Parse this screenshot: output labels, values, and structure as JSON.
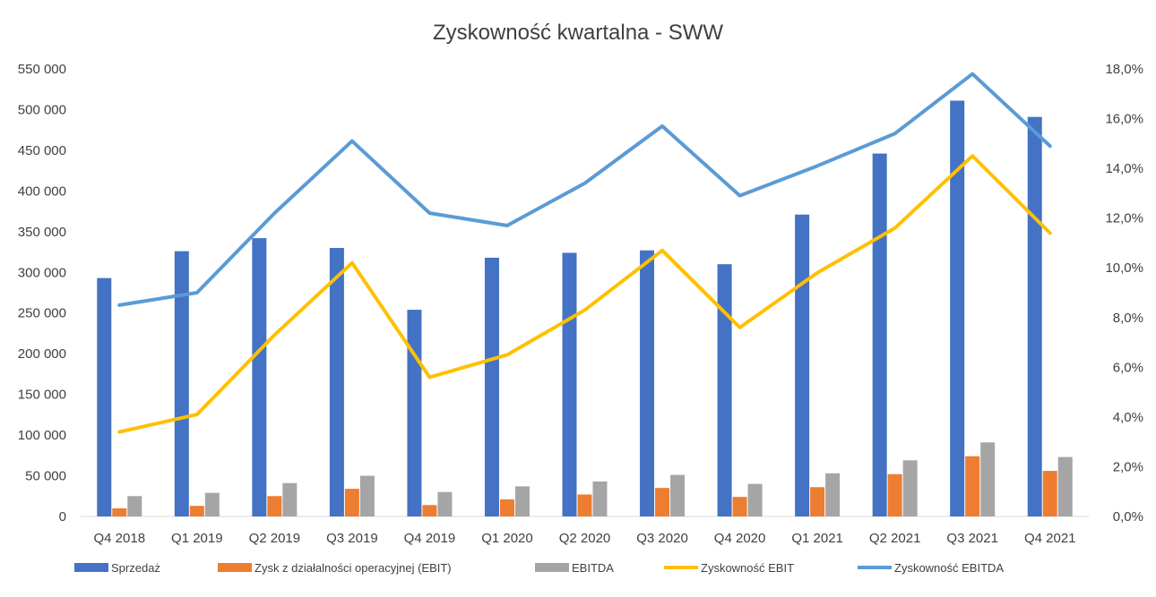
{
  "chart_data": {
    "type": "bar",
    "title": "Zyskowność kwartalna - SWW",
    "categories": [
      "Q4 2018",
      "Q1 2019",
      "Q2 2019",
      "Q3 2019",
      "Q4 2019",
      "Q1 2020",
      "Q2 2020",
      "Q3 2020",
      "Q4 2020",
      "Q1 2021",
      "Q2 2021",
      "Q3 2021",
      "Q4 2021"
    ],
    "y_left": {
      "ylim": [
        0,
        550000
      ],
      "ticks": [
        "0",
        "50 000",
        "100 000",
        "150 000",
        "200 000",
        "250 000",
        "300 000",
        "350 000",
        "400 000",
        "450 000",
        "500 000",
        "550 000"
      ]
    },
    "y_right": {
      "ylim": [
        0,
        18
      ],
      "ticks": [
        "0,0%",
        "2,0%",
        "4,0%",
        "6,0%",
        "8,0%",
        "10,0%",
        "12,0%",
        "14,0%",
        "16,0%",
        "18,0%"
      ]
    },
    "grid": false,
    "legend_position": "bottom",
    "series": [
      {
        "name": "Sprzedaż",
        "type": "bar",
        "axis": "left",
        "color": "#4472C4",
        "values": [
          293000,
          326000,
          342000,
          330000,
          254000,
          318000,
          324000,
          327000,
          310000,
          371000,
          446000,
          511000,
          491000
        ]
      },
      {
        "name": "Zysk z działalności operacyjnej (EBIT)",
        "type": "bar",
        "axis": "left",
        "color": "#ED7D31",
        "values": [
          10000,
          13000,
          25000,
          34000,
          14000,
          21000,
          27000,
          35000,
          24000,
          36000,
          52000,
          74000,
          56000
        ]
      },
      {
        "name": "EBITDA",
        "type": "bar",
        "axis": "left",
        "color": "#A5A5A5",
        "values": [
          25000,
          29000,
          41000,
          50000,
          30000,
          37000,
          43000,
          51000,
          40000,
          53000,
          69000,
          91000,
          73000
        ]
      },
      {
        "name": "Zyskowność EBIT",
        "type": "line",
        "axis": "right",
        "color": "#FFC000",
        "values": [
          3.4,
          4.1,
          7.3,
          10.2,
          5.6,
          6.5,
          8.3,
          10.7,
          7.6,
          9.8,
          11.6,
          14.5,
          11.4
        ]
      },
      {
        "name": "Zyskowność EBITDA",
        "type": "line",
        "axis": "right",
        "color": "#5B9BD5",
        "values": [
          8.5,
          9.0,
          12.2,
          15.1,
          12.2,
          11.7,
          13.4,
          15.7,
          12.9,
          14.1,
          15.4,
          17.8,
          14.9
        ]
      }
    ]
  }
}
